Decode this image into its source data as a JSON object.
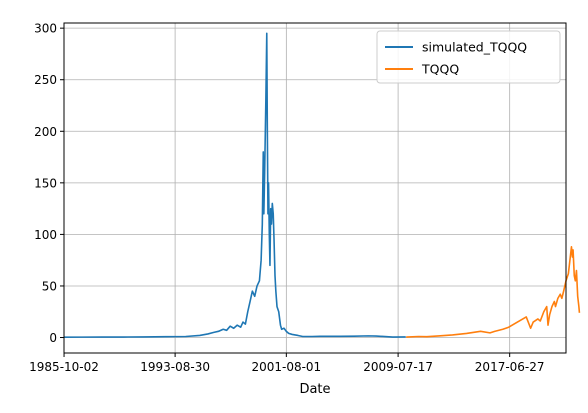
{
  "chart_data": {
    "type": "line",
    "title": "",
    "xlabel": "Date",
    "ylabel": "",
    "grid": true,
    "legend_position": "top-right",
    "x_axis": {
      "min": "1985-10-01",
      "max": "2021-07-01",
      "ticks": [
        "1985-10-02",
        "1993-08-30",
        "2001-08-01",
        "2009-07-17",
        "2017-06-27"
      ]
    },
    "y_axis": {
      "min": -15,
      "max": 305,
      "ticks": [
        0,
        50,
        100,
        150,
        200,
        250,
        300
      ]
    },
    "series": [
      {
        "name": "simulated_TQQQ",
        "color": "#1f77b4",
        "points": [
          [
            "1985-10-02",
            0.3
          ],
          [
            "1987-01-01",
            0.4
          ],
          [
            "1988-06-01",
            0.5
          ],
          [
            "1990-01-01",
            0.5
          ],
          [
            "1991-06-01",
            0.6
          ],
          [
            "1993-01-01",
            0.8
          ],
          [
            "1994-06-01",
            1.0
          ],
          [
            "1995-06-01",
            2.0
          ],
          [
            "1996-01-01",
            3.5
          ],
          [
            "1996-06-01",
            5.0
          ],
          [
            "1996-10-01",
            6.0
          ],
          [
            "1997-02-01",
            8.0
          ],
          [
            "1997-05-01",
            7.0
          ],
          [
            "1997-08-01",
            11.0
          ],
          [
            "1997-11-01",
            9.0
          ],
          [
            "1998-02-01",
            12.0
          ],
          [
            "1998-05-01",
            10.0
          ],
          [
            "1998-07-01",
            15.0
          ],
          [
            "1998-09-01",
            13.0
          ],
          [
            "1998-11-01",
            25.0
          ],
          [
            "1999-01-01",
            35.0
          ],
          [
            "1999-03-01",
            45.0
          ],
          [
            "1999-05-01",
            40.0
          ],
          [
            "1999-07-01",
            50.0
          ],
          [
            "1999-09-01",
            55.0
          ],
          [
            "1999-10-15",
            75.0
          ],
          [
            "1999-11-15",
            110.0
          ],
          [
            "1999-12-10",
            180.0
          ],
          [
            "1999-12-25",
            120.0
          ],
          [
            "2000-01-15",
            160.0
          ],
          [
            "2000-02-15",
            230.0
          ],
          [
            "2000-03-10",
            295.0
          ],
          [
            "2000-03-25",
            200.0
          ],
          [
            "2000-04-10",
            120.0
          ],
          [
            "2000-04-25",
            150.0
          ],
          [
            "2000-05-15",
            100.0
          ],
          [
            "2000-06-01",
            70.0
          ],
          [
            "2000-06-20",
            125.0
          ],
          [
            "2000-07-10",
            110.0
          ],
          [
            "2000-08-01",
            130.0
          ],
          [
            "2000-08-25",
            120.0
          ],
          [
            "2000-09-15",
            95.0
          ],
          [
            "2000-10-10",
            60.0
          ],
          [
            "2000-11-01",
            45.0
          ],
          [
            "2000-12-01",
            30.0
          ],
          [
            "2001-01-15",
            25.0
          ],
          [
            "2001-03-01",
            12.0
          ],
          [
            "2001-04-01",
            8.0
          ],
          [
            "2001-06-01",
            9.0
          ],
          [
            "2001-08-01",
            6.0
          ],
          [
            "2001-10-01",
            4.0
          ],
          [
            "2002-01-01",
            3.0
          ],
          [
            "2002-06-01",
            2.0
          ],
          [
            "2002-10-01",
            1.0
          ],
          [
            "2003-06-01",
            1.0
          ],
          [
            "2004-01-01",
            1.2
          ],
          [
            "2005-06-01",
            1.2
          ],
          [
            "2006-06-01",
            1.3
          ],
          [
            "2007-06-01",
            1.6
          ],
          [
            "2008-01-01",
            1.4
          ],
          [
            "2008-10-01",
            0.8
          ],
          [
            "2009-03-01",
            0.5
          ],
          [
            "2010-02-01",
            0.6
          ]
        ]
      },
      {
        "name": "TQQQ",
        "color": "#ff7f0e",
        "points": [
          [
            "2010-02-11",
            0.5
          ],
          [
            "2011-01-01",
            1.0
          ],
          [
            "2011-08-01",
            0.8
          ],
          [
            "2012-06-01",
            1.5
          ],
          [
            "2013-06-01",
            2.5
          ],
          [
            "2014-06-01",
            4.0
          ],
          [
            "2015-06-01",
            6.0
          ],
          [
            "2016-02-01",
            4.5
          ],
          [
            "2016-06-01",
            6.0
          ],
          [
            "2017-01-01",
            8.0
          ],
          [
            "2017-06-01",
            10.0
          ],
          [
            "2017-12-01",
            14.0
          ],
          [
            "2018-03-01",
            16.0
          ],
          [
            "2018-09-01",
            20.0
          ],
          [
            "2018-12-24",
            9.0
          ],
          [
            "2019-03-01",
            15.0
          ],
          [
            "2019-07-01",
            18.0
          ],
          [
            "2019-09-01",
            16.0
          ],
          [
            "2019-12-01",
            25.0
          ],
          [
            "2020-02-15",
            30.0
          ],
          [
            "2020-03-20",
            12.0
          ],
          [
            "2020-05-01",
            22.0
          ],
          [
            "2020-07-01",
            30.0
          ],
          [
            "2020-09-01",
            35.0
          ],
          [
            "2020-10-01",
            30.0
          ],
          [
            "2020-12-01",
            38.0
          ],
          [
            "2021-02-01",
            42.0
          ],
          [
            "2021-03-15",
            38.0
          ],
          [
            "2021-05-01",
            45.0
          ],
          [
            "2021-07-01",
            55.0
          ],
          [
            "2021-09-01",
            62.0
          ],
          [
            "2021-11-20",
            88.0
          ],
          [
            "2021-12-15",
            78.0
          ],
          [
            "2022-01-01",
            85.0
          ],
          [
            "2022-02-01",
            60.0
          ],
          [
            "2022-03-01",
            55.0
          ],
          [
            "2022-03-30",
            65.0
          ],
          [
            "2022-05-01",
            40.0
          ],
          [
            "2022-06-01",
            30.0
          ],
          [
            "2022-06-15",
            24.0
          ]
        ]
      }
    ]
  }
}
